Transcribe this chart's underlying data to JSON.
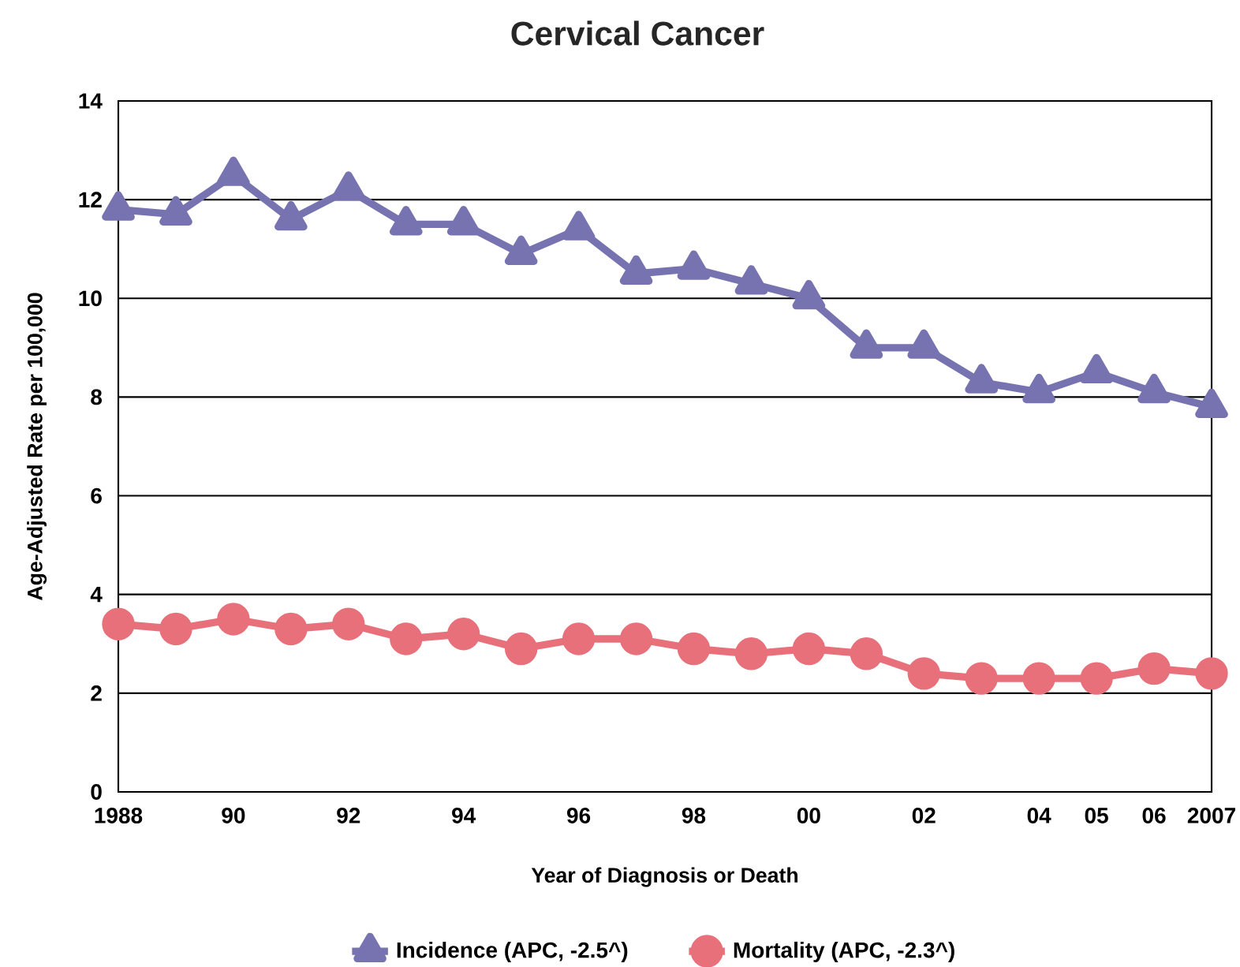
{
  "chart_data": {
    "type": "line",
    "title": "Cervical Cancer",
    "xlabel": "Year of Diagnosis or Death",
    "ylabel": "Age-Adjusted Rate per 100,000",
    "categories": [
      "1988",
      null,
      "90",
      null,
      "92",
      null,
      "94",
      null,
      "96",
      null,
      "98",
      null,
      "00",
      null,
      "02",
      null,
      "04",
      "05",
      "06",
      "2007"
    ],
    "series": [
      {
        "name": "Incidence (APC, -2.5^)",
        "color": "#7773b0",
        "marker": "triangle",
        "values": [
          11.8,
          11.7,
          12.5,
          11.6,
          12.2,
          11.5,
          11.5,
          10.9,
          11.4,
          10.5,
          10.6,
          10.3,
          10.0,
          9.0,
          9.0,
          8.3,
          8.1,
          8.5,
          8.1,
          7.8
        ]
      },
      {
        "name": "Mortality (APC, -2.3^)",
        "color": "#e8707a",
        "marker": "circle",
        "values": [
          3.4,
          3.3,
          3.5,
          3.3,
          3.4,
          3.1,
          3.2,
          2.9,
          3.1,
          3.1,
          2.9,
          2.8,
          2.9,
          2.8,
          2.4,
          2.3,
          2.3,
          2.3,
          2.5,
          2.4
        ]
      }
    ],
    "ylim": [
      0,
      14
    ],
    "yticks": [
      0,
      2,
      4,
      6,
      8,
      10,
      12,
      14
    ],
    "grid": "y",
    "legend": "bottom",
    "line_style": "solid"
  }
}
